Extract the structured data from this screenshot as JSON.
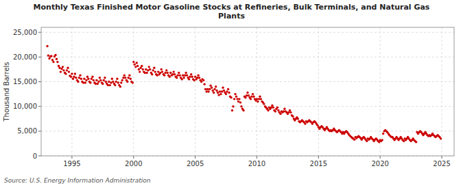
{
  "chart_data": {
    "type": "scatter",
    "title": "Monthly Texas Finished Motor Gasoline Stocks at Refineries, Bulk Terminals, and Natural Gas\nPlants",
    "y_label": "Thousand Barrels",
    "annotations": [
      "Source: U.S. Energy Information Administration"
    ],
    "color": "#cc0000",
    "grid": true,
    "xlim": [
      1992.5,
      2026.0
    ],
    "ylim": [
      0,
      26000
    ],
    "xticks": [
      1995,
      2000,
      2005,
      2010,
      2015,
      2020,
      2025
    ],
    "yticks": [
      0,
      {
        "value": 5000,
        "label": "5,000"
      },
      {
        "value": 10000,
        "label": "10,000"
      },
      {
        "value": 15000,
        "label": "15,000"
      },
      {
        "value": 20000,
        "label": "20,000"
      },
      {
        "value": 25000,
        "label": "25,000"
      }
    ],
    "x": [
      1993.0,
      1993.08,
      1993.17,
      1993.25,
      1993.33,
      1993.42,
      1993.5,
      1993.58,
      1993.67,
      1993.75,
      1993.83,
      1993.92,
      1994.0,
      1994.08,
      1994.17,
      1994.25,
      1994.33,
      1994.42,
      1994.5,
      1994.58,
      1994.67,
      1994.75,
      1994.83,
      1994.92,
      1995.0,
      1995.08,
      1995.17,
      1995.25,
      1995.33,
      1995.42,
      1995.5,
      1995.58,
      1995.67,
      1995.75,
      1995.83,
      1995.92,
      1996.0,
      1996.08,
      1996.17,
      1996.25,
      1996.33,
      1996.42,
      1996.5,
      1996.58,
      1996.67,
      1996.75,
      1996.83,
      1996.92,
      1997.0,
      1997.08,
      1997.17,
      1997.25,
      1997.33,
      1997.42,
      1997.5,
      1997.58,
      1997.67,
      1997.75,
      1997.83,
      1997.92,
      1998.0,
      1998.08,
      1998.17,
      1998.25,
      1998.33,
      1998.42,
      1998.5,
      1998.58,
      1998.67,
      1998.75,
      1998.83,
      1998.92,
      1999.0,
      1999.08,
      1999.17,
      1999.25,
      1999.33,
      1999.42,
      1999.5,
      1999.58,
      1999.67,
      1999.75,
      1999.83,
      1999.92,
      2000.0,
      2000.08,
      2000.17,
      2000.25,
      2000.33,
      2000.42,
      2000.5,
      2000.58,
      2000.67,
      2000.75,
      2000.83,
      2000.92,
      2001.0,
      2001.08,
      2001.17,
      2001.25,
      2001.33,
      2001.42,
      2001.5,
      2001.58,
      2001.67,
      2001.75,
      2001.83,
      2001.92,
      2002.0,
      2002.08,
      2002.17,
      2002.25,
      2002.33,
      2002.42,
      2002.5,
      2002.58,
      2002.67,
      2002.75,
      2002.83,
      2002.92,
      2003.0,
      2003.08,
      2003.17,
      2003.25,
      2003.33,
      2003.42,
      2003.5,
      2003.58,
      2003.67,
      2003.75,
      2003.83,
      2003.92,
      2004.0,
      2004.08,
      2004.17,
      2004.25,
      2004.33,
      2004.42,
      2004.5,
      2004.58,
      2004.67,
      2004.75,
      2004.83,
      2004.92,
      2005.0,
      2005.08,
      2005.17,
      2005.25,
      2005.33,
      2005.42,
      2005.5,
      2005.58,
      2005.67,
      2005.75,
      2005.83,
      2005.92,
      2006.0,
      2006.08,
      2006.17,
      2006.25,
      2006.33,
      2006.42,
      2006.5,
      2006.58,
      2006.67,
      2006.75,
      2006.83,
      2006.92,
      2007.0,
      2007.08,
      2007.17,
      2007.25,
      2007.33,
      2007.42,
      2007.5,
      2007.58,
      2007.67,
      2007.75,
      2007.83,
      2007.92,
      2008.0,
      2008.08,
      2008.17,
      2008.25,
      2008.33,
      2008.42,
      2008.5,
      2008.58,
      2008.67,
      2008.75,
      2008.83,
      2008.92,
      2009.0,
      2009.08,
      2009.17,
      2009.25,
      2009.33,
      2009.42,
      2009.5,
      2009.58,
      2009.67,
      2009.75,
      2009.83,
      2009.92,
      2010.0,
      2010.08,
      2010.17,
      2010.25,
      2010.33,
      2010.42,
      2010.5,
      2010.58,
      2010.67,
      2010.75,
      2010.83,
      2010.92,
      2011.0,
      2011.08,
      2011.17,
      2011.25,
      2011.33,
      2011.42,
      2011.5,
      2011.58,
      2011.67,
      2011.75,
      2011.83,
      2011.92,
      2012.0,
      2012.08,
      2012.17,
      2012.25,
      2012.33,
      2012.42,
      2012.5,
      2012.58,
      2012.67,
      2012.75,
      2012.83,
      2012.92,
      2013.0,
      2013.08,
      2013.17,
      2013.25,
      2013.33,
      2013.42,
      2013.5,
      2013.58,
      2013.67,
      2013.75,
      2013.83,
      2013.92,
      2014.0,
      2014.08,
      2014.17,
      2014.25,
      2014.33,
      2014.42,
      2014.5,
      2014.58,
      2014.67,
      2014.75,
      2014.83,
      2014.92,
      2015.0,
      2015.08,
      2015.17,
      2015.25,
      2015.33,
      2015.42,
      2015.5,
      2015.58,
      2015.67,
      2015.75,
      2015.83,
      2015.92,
      2016.0,
      2016.08,
      2016.17,
      2016.25,
      2016.33,
      2016.42,
      2016.5,
      2016.58,
      2016.67,
      2016.75,
      2016.83,
      2016.92,
      2017.0,
      2017.08,
      2017.17,
      2017.25,
      2017.33,
      2017.42,
      2017.5,
      2017.58,
      2017.67,
      2017.75,
      2017.83,
      2017.92,
      2018.0,
      2018.08,
      2018.17,
      2018.25,
      2018.33,
      2018.42,
      2018.5,
      2018.58,
      2018.67,
      2018.75,
      2018.83,
      2018.92,
      2019.0,
      2019.08,
      2019.17,
      2019.25,
      2019.33,
      2019.42,
      2019.5,
      2019.58,
      2019.67,
      2019.75,
      2019.83,
      2019.92,
      2020.0,
      2020.08,
      2020.17,
      2020.25,
      2020.33,
      2020.42,
      2020.5,
      2020.58,
      2020.67,
      2020.75,
      2020.83,
      2020.92,
      2021.0,
      2021.08,
      2021.17,
      2021.25,
      2021.33,
      2021.42,
      2021.5,
      2021.58,
      2021.67,
      2021.75,
      2021.83,
      2021.92,
      2022.0,
      2022.08,
      2022.17,
      2022.25,
      2022.33,
      2022.42,
      2022.5,
      2022.58,
      2022.67,
      2022.75,
      2022.83,
      2022.92,
      2023.0,
      2023.08,
      2023.17,
      2023.25,
      2023.33,
      2023.42,
      2023.5,
      2023.58,
      2023.67,
      2023.75,
      2023.83,
      2023.92,
      2024.0,
      2024.08,
      2024.17,
      2024.25,
      2024.33,
      2024.42,
      2024.5,
      2024.58,
      2024.67,
      2024.75,
      2024.83,
      2024.92
    ],
    "values": [
      22200,
      20300,
      19700,
      20100,
      20200,
      19400,
      19000,
      20100,
      20400,
      19600,
      19000,
      18200,
      17800,
      17000,
      17600,
      18000,
      17300,
      16800,
      16600,
      17300,
      17800,
      17000,
      16200,
      16000,
      16600,
      15600,
      16000,
      16600,
      15800,
      15300,
      15000,
      15800,
      16300,
      15600,
      15000,
      14800,
      15600,
      14800,
      15300,
      16000,
      15600,
      15000,
      14800,
      15600,
      16000,
      15300,
      14800,
      14600,
      15300,
      14600,
      15000,
      15800,
      15300,
      14800,
      14600,
      15300,
      15800,
      15000,
      14600,
      14300,
      15000,
      14300,
      14800,
      15600,
      15000,
      14600,
      14300,
      15000,
      15600,
      14800,
      14300,
      14000,
      14800,
      15300,
      15800,
      16300,
      15800,
      15300,
      15000,
      15800,
      16300,
      15600,
      15000,
      14800,
      19000,
      18500,
      18000,
      18800,
      18200,
      17500,
      17000,
      17800,
      18200,
      17500,
      17000,
      16800,
      17500,
      16800,
      17300,
      18000,
      17500,
      16800,
      16500,
      17300,
      17800,
      17000,
      16500,
      16300,
      17000,
      16500,
      16800,
      17500,
      17000,
      16500,
      16300,
      16800,
      17300,
      16800,
      16300,
      16000,
      16800,
      16300,
      16500,
      17000,
      16500,
      16000,
      15800,
      16300,
      16800,
      16300,
      15800,
      15500,
      16300,
      15800,
      16300,
      16800,
      16300,
      15800,
      15500,
      16000,
      16500,
      16000,
      15500,
      15300,
      16000,
      15500,
      15800,
      16300,
      15800,
      15300,
      15000,
      15500,
      15300,
      14500,
      13500,
      13000,
      13500,
      13000,
      13500,
      14200,
      13800,
      13200,
      12800,
      13500,
      14000,
      13200,
      12800,
      12300,
      13000,
      12500,
      13000,
      13800,
      13200,
      12800,
      12500,
      13000,
      13500,
      12800,
      12000,
      11800,
      9200,
      10000,
      11500,
      12500,
      12000,
      11500,
      11000,
      11500,
      10800,
      10000,
      9500,
      9200,
      12000,
      11800,
      12200,
      12800,
      12200,
      11800,
      11500,
      12000,
      12500,
      12000,
      11500,
      11200,
      11500,
      11000,
      11500,
      12000,
      11500,
      11000,
      10800,
      10500,
      10000,
      9800,
      9500,
      9200,
      9800,
      9500,
      9800,
      10200,
      9800,
      9200,
      9000,
      9500,
      9800,
      9200,
      8800,
      8500,
      9000,
      8800,
      9000,
      9500,
      9000,
      8800,
      8500,
      8800,
      9200,
      8800,
      8200,
      8000,
      7500,
      7200,
      7500,
      7800,
      7500,
      7000,
      6800,
      7000,
      7200,
      7000,
      6800,
      6500,
      7000,
      6800,
      7000,
      7200,
      7000,
      6800,
      6500,
      6800,
      7000,
      6800,
      6500,
      6200,
      5800,
      5500,
      5800,
      6000,
      5800,
      5500,
      5200,
      5500,
      5800,
      5500,
      5200,
      5000,
      5200,
      5000,
      5200,
      5500,
      5200,
      5000,
      4800,
      5000,
      5200,
      5000,
      4800,
      4500,
      4800,
      4500,
      4800,
      5000,
      4800,
      4500,
      4200,
      4000,
      3800,
      3600,
      3500,
      3300,
      3800,
      3600,
      3800,
      4000,
      3800,
      3600,
      3300,
      3600,
      3800,
      3600,
      3300,
      3000,
      3500,
      3300,
      3500,
      3800,
      3500,
      3300,
      3000,
      3300,
      3500,
      3300,
      3000,
      2800,
      3200,
      3000,
      3200,
      4500,
      5000,
      5200,
      5000,
      4800,
      4500,
      4200,
      4000,
      3800,
      3800,
      3500,
      3200,
      3500,
      3800,
      3500,
      3200,
      3500,
      3800,
      3500,
      3200,
      3000,
      3500,
      3200,
      3500,
      3800,
      3500,
      3200,
      3000,
      3200,
      3500,
      3200,
      3000,
      2800,
      4800,
      4500,
      4800,
      5000,
      4800,
      4500,
      4200,
      4500,
      4800,
      4500,
      4200,
      4000,
      4200,
      4000,
      4200,
      4500,
      4200,
      4000,
      3800,
      4000,
      4200,
      4000,
      3800,
      3500
    ]
  }
}
